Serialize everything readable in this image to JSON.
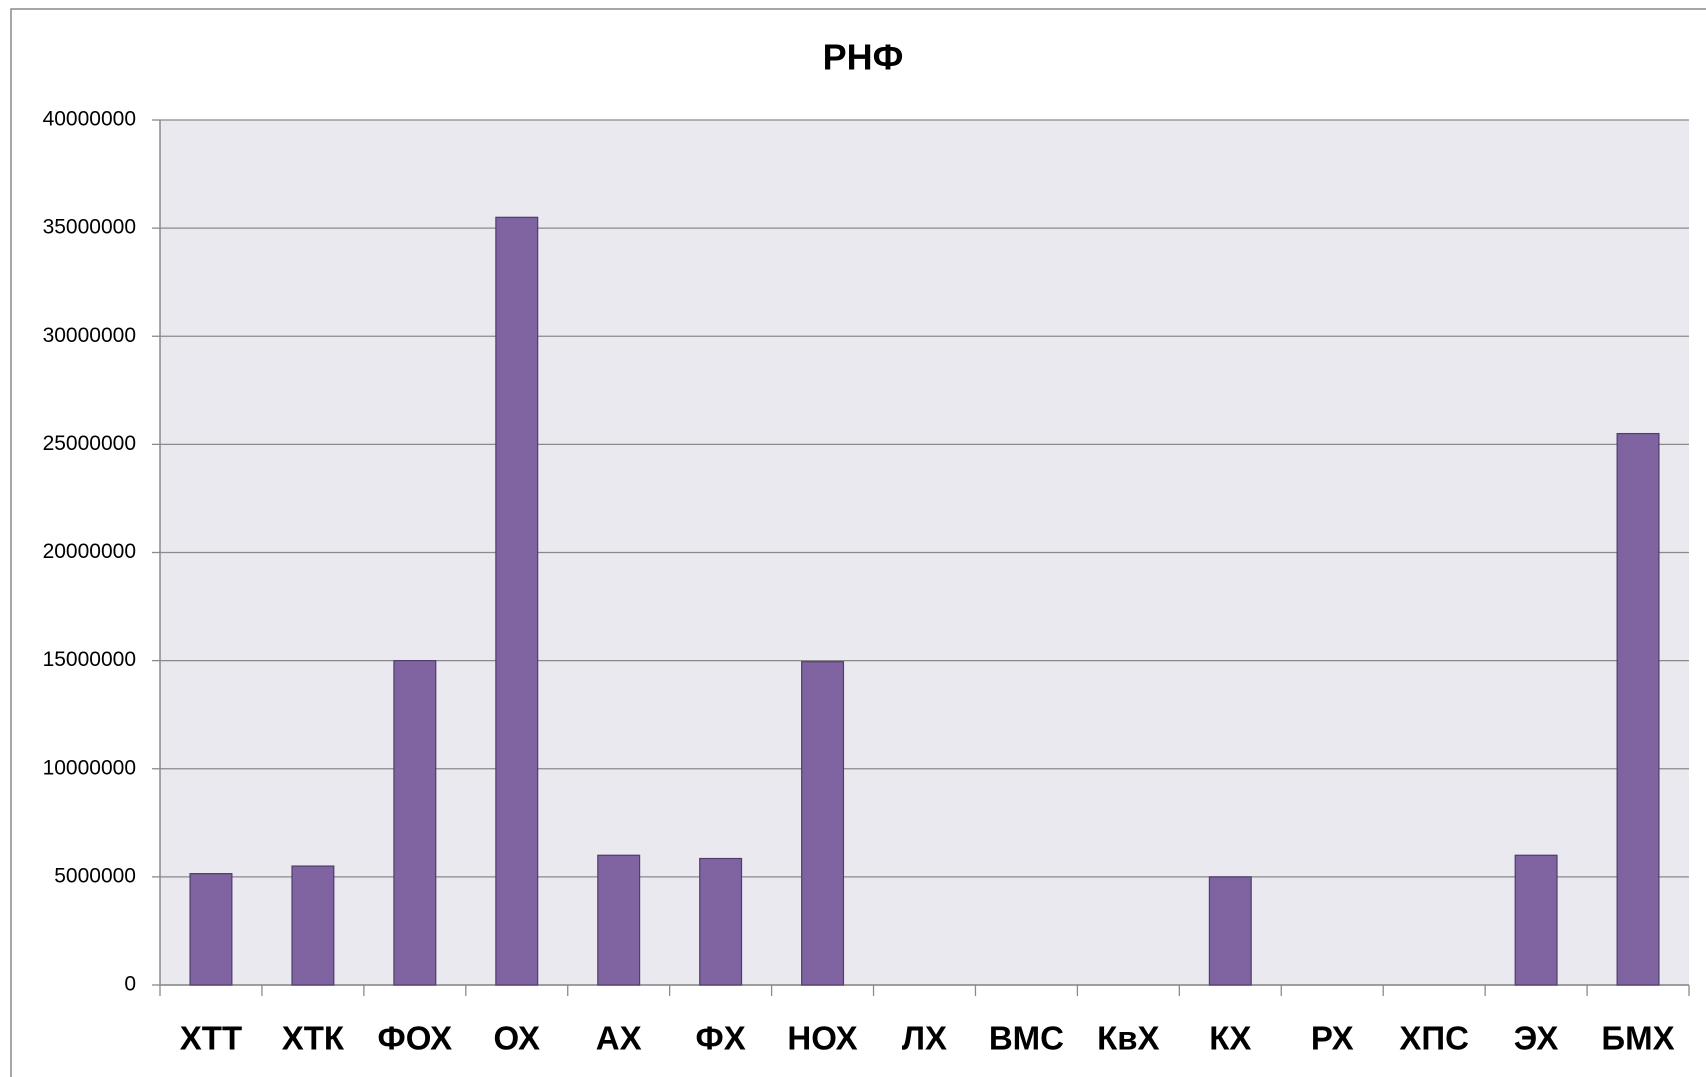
{
  "chart_data": {
    "type": "bar",
    "title": "РНФ",
    "categories": [
      "ХТТ",
      "ХТК",
      "ФОХ",
      "ОХ",
      "АХ",
      "ФХ",
      "НОХ",
      "ЛХ",
      "ВМС",
      "КвХ",
      "КХ",
      "РХ",
      "ХПС",
      "ЭХ",
      "БМХ"
    ],
    "values": [
      5150000,
      5500000,
      15000000,
      35500000,
      6000000,
      5850000,
      14950000,
      0,
      0,
      0,
      5000000,
      0,
      0,
      6000000,
      25500000
    ],
    "color": "#8064a2",
    "ylim": [
      0,
      40000000
    ],
    "yticks": [
      0,
      5000000,
      10000000,
      15000000,
      20000000,
      25000000,
      30000000,
      35000000,
      40000000
    ],
    "grid": true
  }
}
